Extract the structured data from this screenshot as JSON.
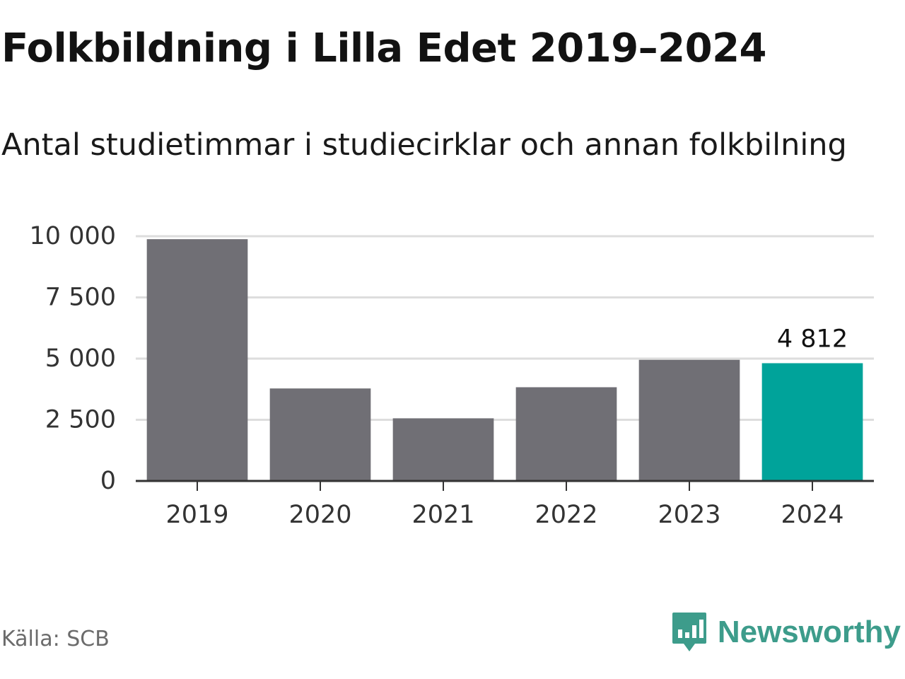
{
  "header": {
    "title": "Folkbildning i Lilla Edet 2019–2024",
    "subtitle": "Antal studietimmar i studiecirklar och annan folkbilning"
  },
  "footer": {
    "source": "Källa: SCB",
    "brand": "Newsworthy",
    "brand_icon": "newsworthy-logo-icon",
    "brand_color": "#3d9c8b"
  },
  "chart_data": {
    "type": "bar",
    "categories": [
      "2019",
      "2020",
      "2021",
      "2022",
      "2023",
      "2024"
    ],
    "values": [
      9880,
      3780,
      2560,
      3830,
      4950,
      4812
    ],
    "highlight_index": 5,
    "data_labels": [
      {
        "index": 5,
        "text": "4 812"
      }
    ],
    "ylim": [
      0,
      10000
    ],
    "yticks": [
      {
        "value": 0,
        "label": "0"
      },
      {
        "value": 2500,
        "label": "2 500"
      },
      {
        "value": 5000,
        "label": "5 000"
      },
      {
        "value": 7500,
        "label": "7 500"
      },
      {
        "value": 10000,
        "label": "10 000"
      }
    ],
    "grid": true,
    "legend": "none",
    "colors": {
      "bar": "#706f75",
      "highlight": "#00a39a",
      "grid": "#dddddd",
      "axis": "#333333"
    }
  }
}
